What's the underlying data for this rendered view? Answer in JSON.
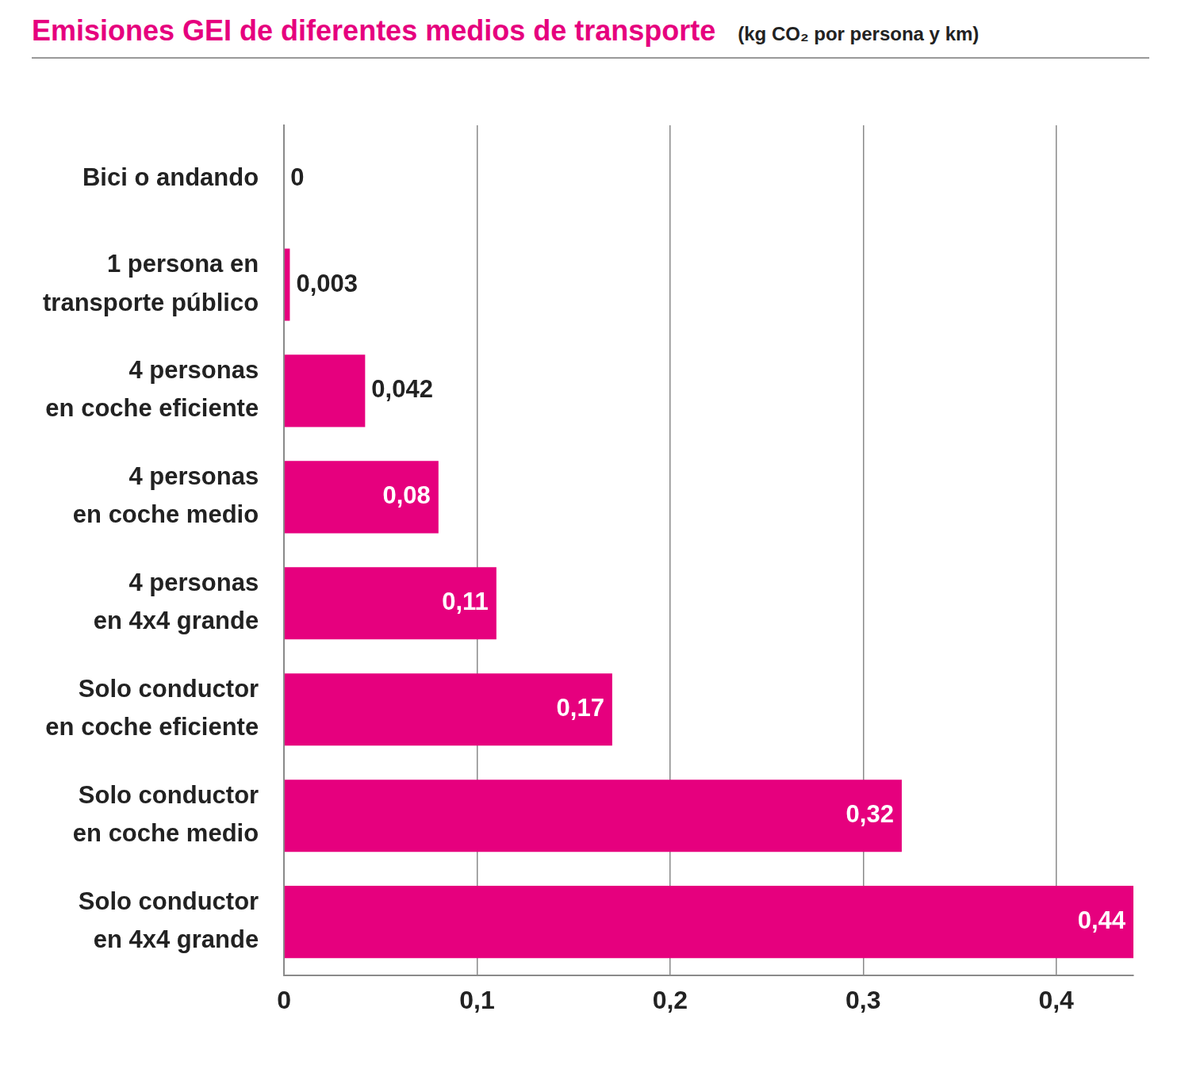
{
  "chart_data": {
    "type": "bar",
    "orientation": "horizontal",
    "title": "Emisiones GEI de diferentes medios de transporte",
    "subtitle": "(kg CO₂ por persona y km)",
    "categories": [
      "Bici o andando",
      "1 persona en transporte público",
      "4 personas en coche eficiente",
      "4 personas en coche medio",
      "4 personas en 4x4 grande",
      "Solo conductor en coche eficiente",
      "Solo conductor en coche medio",
      "Solo conductor en 4x4 grande"
    ],
    "values": [
      0,
      0.003,
      0.042,
      0.08,
      0.11,
      0.17,
      0.32,
      0.44
    ],
    "value_labels": [
      "0",
      "0,003",
      "0,042",
      "0,08",
      "0,11",
      "0,17",
      "0,32",
      "0,44"
    ],
    "color": "#e6007e",
    "data_labels": true,
    "xlim": [
      0,
      0.44
    ],
    "xticks": [
      0,
      {
        "value": 0.1,
        "label": "0,1"
      },
      {
        "value": 0.2,
        "label": "0,2"
      },
      {
        "value": 0.3,
        "label": "0,3"
      },
      {
        "value": 0.4,
        "label": "0,4"
      }
    ],
    "grid": true
  }
}
